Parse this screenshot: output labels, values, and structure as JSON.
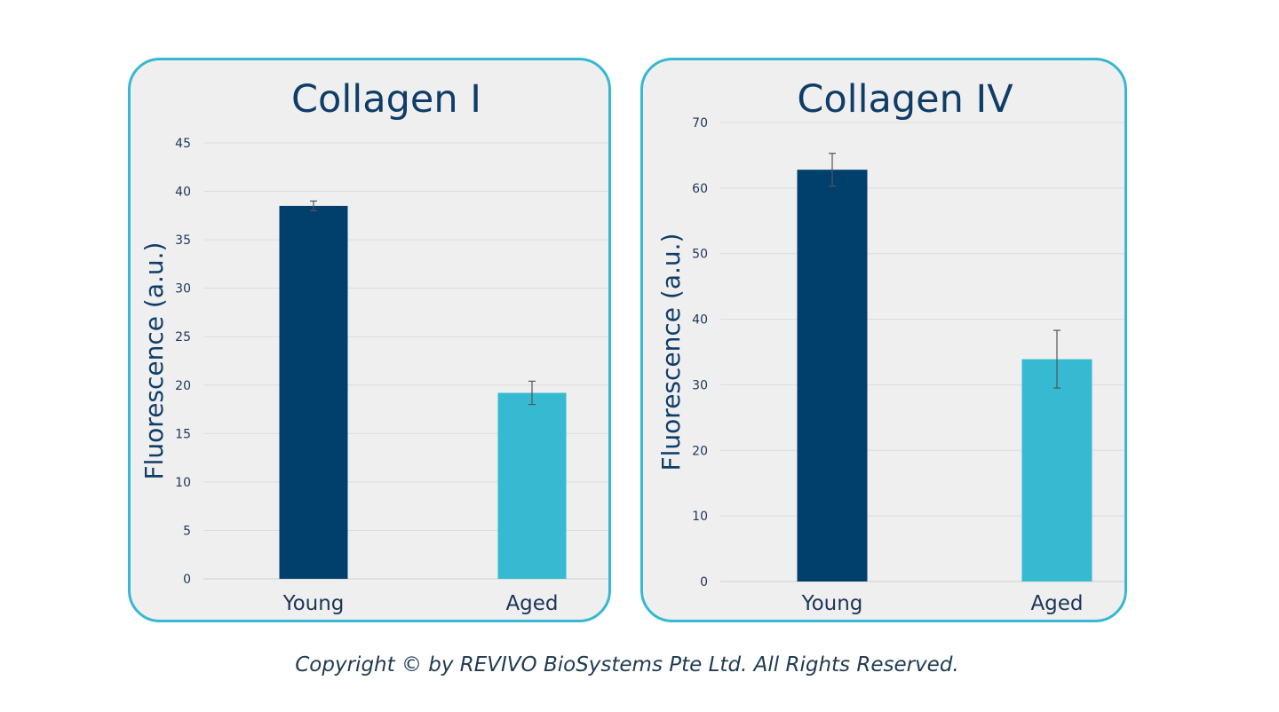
{
  "chart_data": [
    {
      "type": "bar",
      "title": "Collagen I",
      "ylabel": "Fluorescence (a.u.)",
      "xlabel": "",
      "categories": [
        "Young",
        "Aged"
      ],
      "values": [
        38.5,
        19.2
      ],
      "errors": [
        0.5,
        1.2
      ],
      "colors": [
        "#013f6d",
        "#35bad2"
      ],
      "ylim": [
        0,
        45
      ],
      "yticks": [
        0,
        5,
        10,
        15,
        20,
        25,
        30,
        35,
        40,
        45
      ],
      "grid": true
    },
    {
      "type": "bar",
      "title": "Collagen IV",
      "ylabel": "Fluorescence (a.u.)",
      "xlabel": "",
      "categories": [
        "Young",
        "Aged"
      ],
      "values": [
        62.8,
        33.9
      ],
      "errors": [
        2.5,
        4.4
      ],
      "colors": [
        "#013f6d",
        "#35bad2"
      ],
      "ylim": [
        0,
        70
      ],
      "yticks": [
        0,
        10,
        20,
        30,
        40,
        50,
        60,
        70
      ],
      "grid": true
    }
  ],
  "footer": {
    "copyright": "Copyright © by REVIVO BioSystems Pte Ltd. All Rights Reserved."
  }
}
